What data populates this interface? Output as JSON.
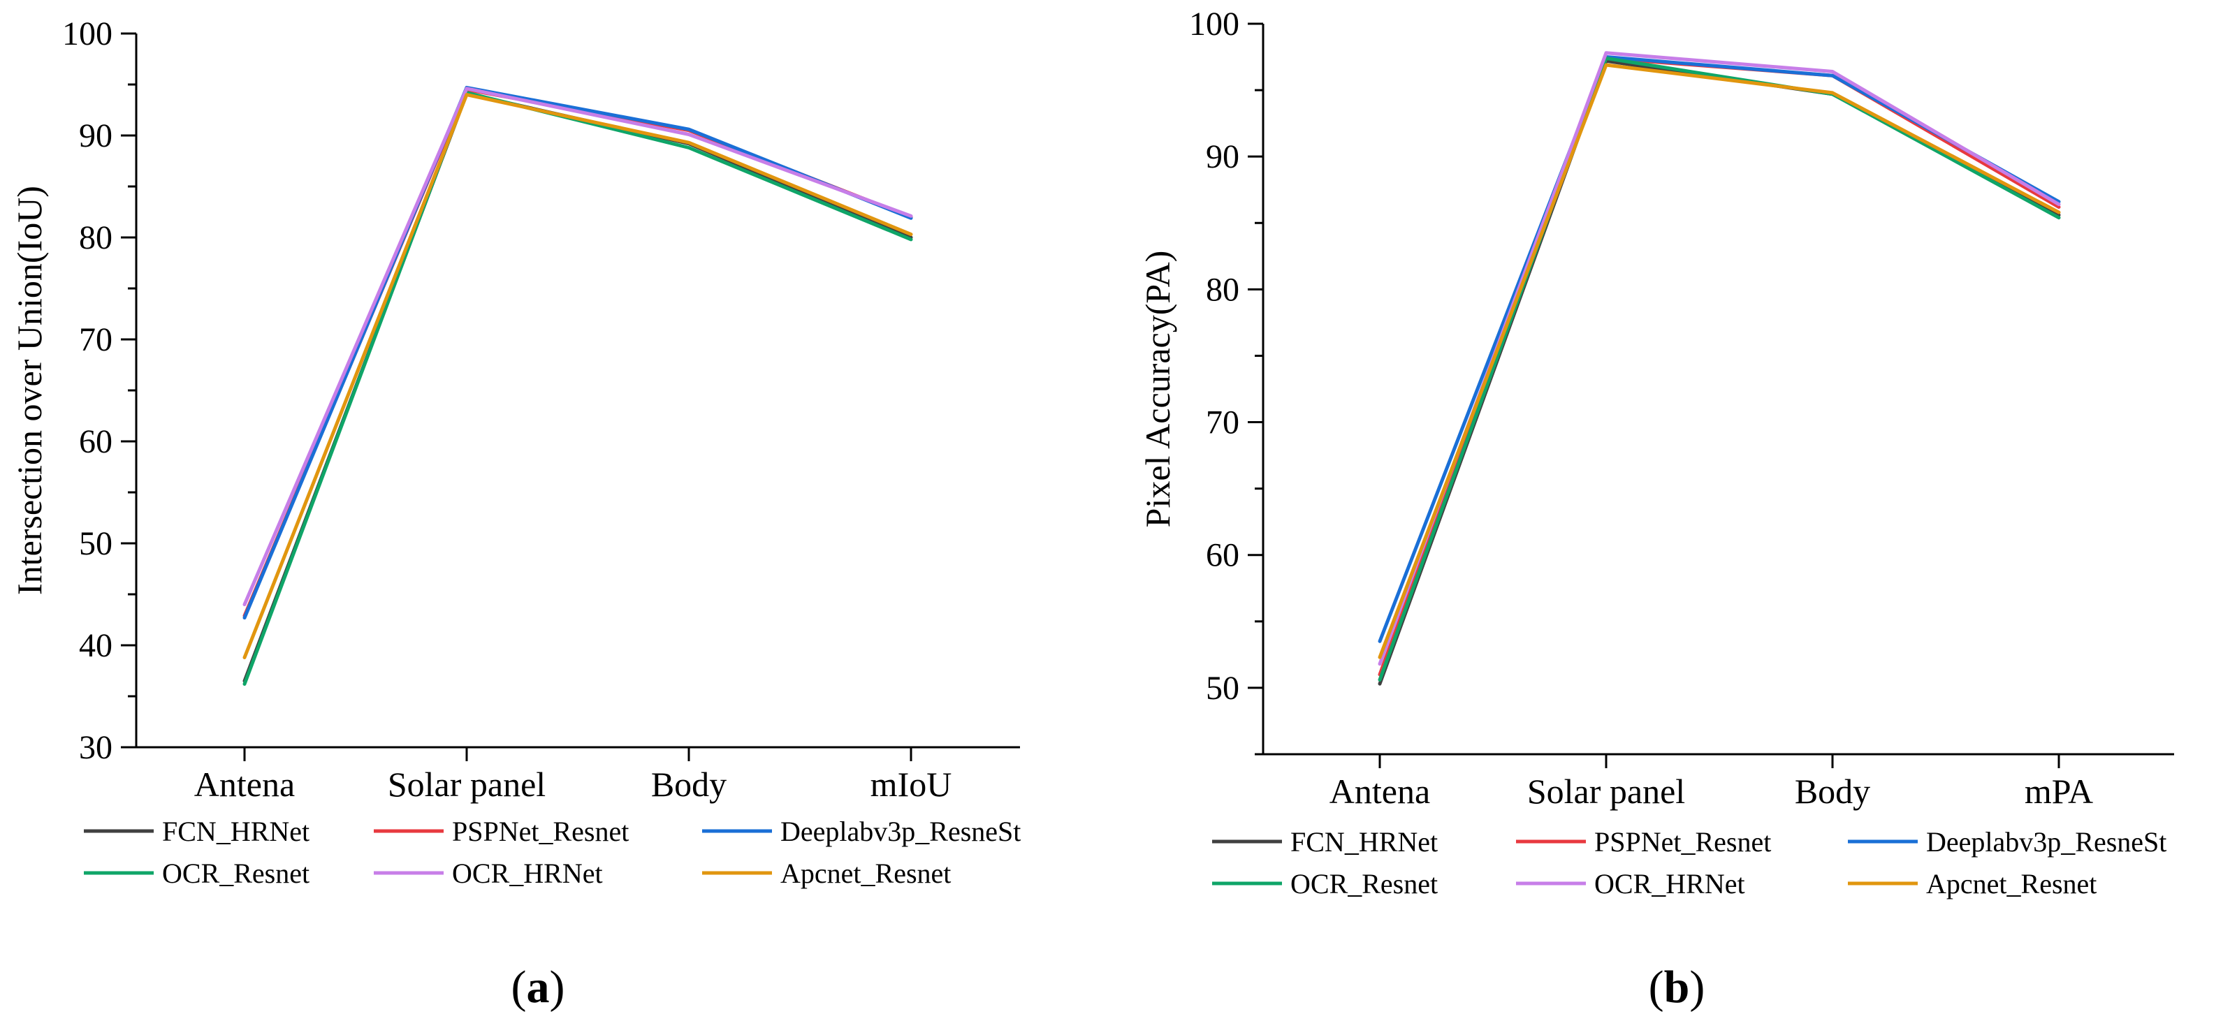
{
  "chart_data": [
    {
      "type": "line",
      "panel_label": {
        "open": "(",
        "letter": "a",
        "close": ")"
      },
      "ylabel": "Intersection over Union(IoU)",
      "xlabel": "",
      "ylim": [
        30,
        100
      ],
      "yticks": [
        30,
        40,
        50,
        60,
        70,
        80,
        90,
        100
      ],
      "grid": false,
      "categories": [
        "Antena",
        "Solar panel",
        "Body",
        "mIoU"
      ],
      "legend_position": "bottom",
      "series": [
        {
          "name": "FCN_HRNet",
          "color": "#404040",
          "values": [
            36.5,
            94.1,
            89.2,
            80.0
          ]
        },
        {
          "name": "PSPNet_Resnet",
          "color": "#e8393f",
          "values": [
            42.9,
            94.5,
            90.5,
            82.0
          ]
        },
        {
          "name": "Deeplabv3p_ResneSt",
          "color": "#1a6fd6",
          "values": [
            42.7,
            94.7,
            90.6,
            81.9
          ]
        },
        {
          "name": "OCR_Resnet",
          "color": "#0fa568",
          "values": [
            36.2,
            94.2,
            88.8,
            79.8
          ]
        },
        {
          "name": "OCR_HRNet",
          "color": "#c77ee8",
          "values": [
            44.0,
            94.6,
            90.1,
            82.1
          ]
        },
        {
          "name": "Apcnet_Resnet",
          "color": "#e1960f",
          "values": [
            38.8,
            94.0,
            89.3,
            80.3
          ]
        }
      ]
    },
    {
      "type": "line",
      "panel_label": {
        "open": "(",
        "letter": "b",
        "close": ")"
      },
      "ylabel": "Pixel Accuracy(PA)",
      "xlabel": "",
      "ylim": [
        45,
        100
      ],
      "yticks": [
        50,
        60,
        70,
        80,
        90,
        100
      ],
      "grid": false,
      "categories": [
        "Antena",
        "Solar panel",
        "Body",
        "mPA"
      ],
      "legend_position": "bottom",
      "series": [
        {
          "name": "FCN_HRNet",
          "color": "#404040",
          "values": [
            50.3,
            97.2,
            94.7,
            85.6
          ]
        },
        {
          "name": "PSPNet_Resnet",
          "color": "#e8393f",
          "values": [
            51.0,
            97.4,
            96.1,
            86.2
          ]
        },
        {
          "name": "Deeplabv3p_ResneSt",
          "color": "#1a6fd6",
          "values": [
            53.5,
            97.5,
            96.1,
            86.6
          ]
        },
        {
          "name": "OCR_Resnet",
          "color": "#0fa568",
          "values": [
            50.6,
            97.4,
            94.7,
            85.4
          ]
        },
        {
          "name": "OCR_HRNet",
          "color": "#c77ee8",
          "values": [
            51.8,
            97.8,
            96.4,
            86.4
          ]
        },
        {
          "name": "Apcnet_Resnet",
          "color": "#e1960f",
          "values": [
            52.3,
            96.9,
            94.8,
            85.8
          ]
        }
      ]
    }
  ]
}
